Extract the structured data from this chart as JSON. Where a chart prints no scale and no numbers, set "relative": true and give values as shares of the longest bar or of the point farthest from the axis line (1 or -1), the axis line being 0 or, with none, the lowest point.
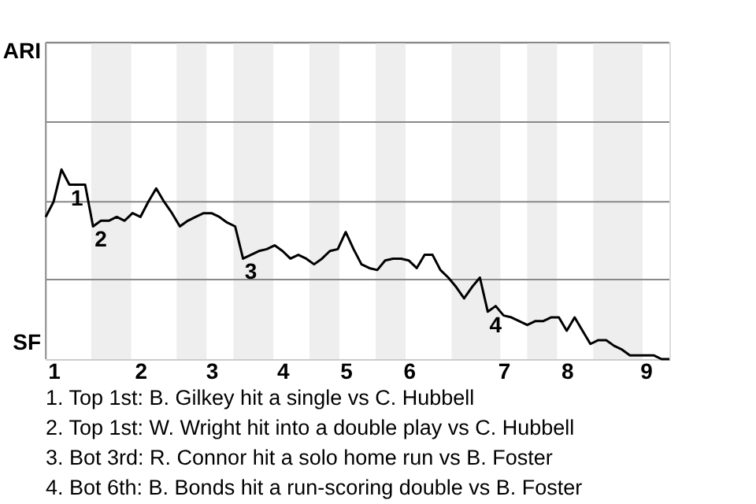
{
  "chart_data": {
    "type": "line",
    "relative": true,
    "categories": [
      null,
      "1",
      null,
      null,
      null,
      null,
      null,
      null,
      null,
      null,
      null,
      null,
      "2",
      null,
      null,
      null,
      null,
      null,
      null,
      null,
      null,
      "3",
      null,
      null,
      null,
      null,
      null,
      null,
      null,
      null,
      "4",
      null,
      null,
      null,
      null,
      null,
      null,
      null,
      "5",
      null,
      null,
      null,
      null,
      null,
      null,
      null,
      "6",
      null,
      null,
      null,
      null,
      null,
      null,
      null,
      null,
      null,
      null,
      null,
      "7",
      null,
      null,
      null,
      null,
      null,
      null,
      null,
      "8",
      null,
      null,
      null,
      null,
      null,
      null,
      null,
      null,
      null,
      "9",
      null,
      null,
      null
    ],
    "series": [
      {
        "color": "#000000",
        "values": [
          0.75,
          0.83,
          1,
          0.92,
          0.92,
          0.92,
          0.7,
          0.73,
          0.73,
          0.75,
          0.73,
          0.77,
          0.75,
          0.83,
          0.9,
          0.83,
          0.77,
          0.7,
          0.73,
          0.75,
          0.77,
          0.77,
          0.75,
          0.72,
          0.7,
          0.53,
          0.55,
          0.57,
          0.58,
          0.6,
          0.57,
          0.53,
          0.55,
          0.53,
          0.5,
          0.53,
          0.57,
          0.58,
          0.67,
          0.58,
          0.5,
          0.48,
          0.47,
          0.52,
          0.53,
          0.53,
          0.52,
          0.48,
          0.55,
          0.55,
          0.47,
          0.43,
          0.38,
          0.32,
          0.38,
          0.43,
          0.25,
          0.28,
          0.23,
          0.22,
          0.2,
          0.18,
          0.2,
          0.2,
          0.22,
          0.22,
          0.15,
          0.22,
          0.15,
          0.08,
          0.1,
          0.1,
          0.07,
          0.05,
          0.02,
          0.02,
          0.02,
          0.02,
          0,
          0
        ]
      }
    ],
    "line_style": "solid",
    "ref_lines": [
      {
        "axis": "y",
        "value": 0.42,
        "color": "#888888"
      },
      {
        "axis": "y",
        "value": 0.83,
        "color": "#888888"
      },
      {
        "axis": "y",
        "value": 1.25,
        "color": "#888888"
      },
      {
        "axis": "y",
        "value": 1.67,
        "color": "#888888"
      }
    ],
    "annotations": [
      {
        "text": "1",
        "y": 0.92
      },
      {
        "text": "2",
        "y": 0.7
      },
      {
        "text": "3",
        "y": 0.53
      },
      {
        "text": "4",
        "y": 0.25
      },
      "ARI",
      "SF",
      "1. Top 1st: B. Gilkey hit a single vs C. Hubbell",
      "2. Top 1st: W. Wright hit into a double play vs C. Hubbell",
      "3. Bot 3rd: R. Connor hit a solo home run vs B. Foster",
      "4. Bot 6th: B. Bonds hit a run-scoring double vs B. Foster"
    ]
  }
}
